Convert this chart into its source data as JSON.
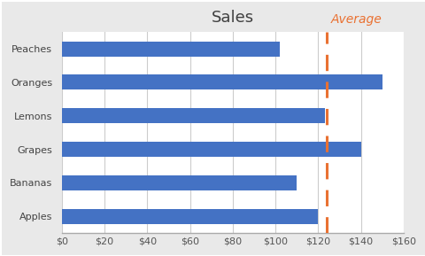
{
  "title": "Sales",
  "categories": [
    "Apples",
    "Bananas",
    "Grapes",
    "Lemons",
    "Oranges",
    "Peaches"
  ],
  "values": [
    120,
    110,
    140,
    123,
    150,
    102
  ],
  "average": 124,
  "bar_color": "#4472C4",
  "vline_color": "#E97132",
  "vline_label": "Average",
  "xlim": [
    0,
    160
  ],
  "xtick_step": 20,
  "background_color": "#E9E9E9",
  "plot_bg_color": "#FFFFFF",
  "grid_color": "#CCCCCC",
  "title_fontsize": 13,
  "label_fontsize": 9,
  "tick_fontsize": 8,
  "ylabel_fontsize": 9,
  "bar_height": 0.45
}
